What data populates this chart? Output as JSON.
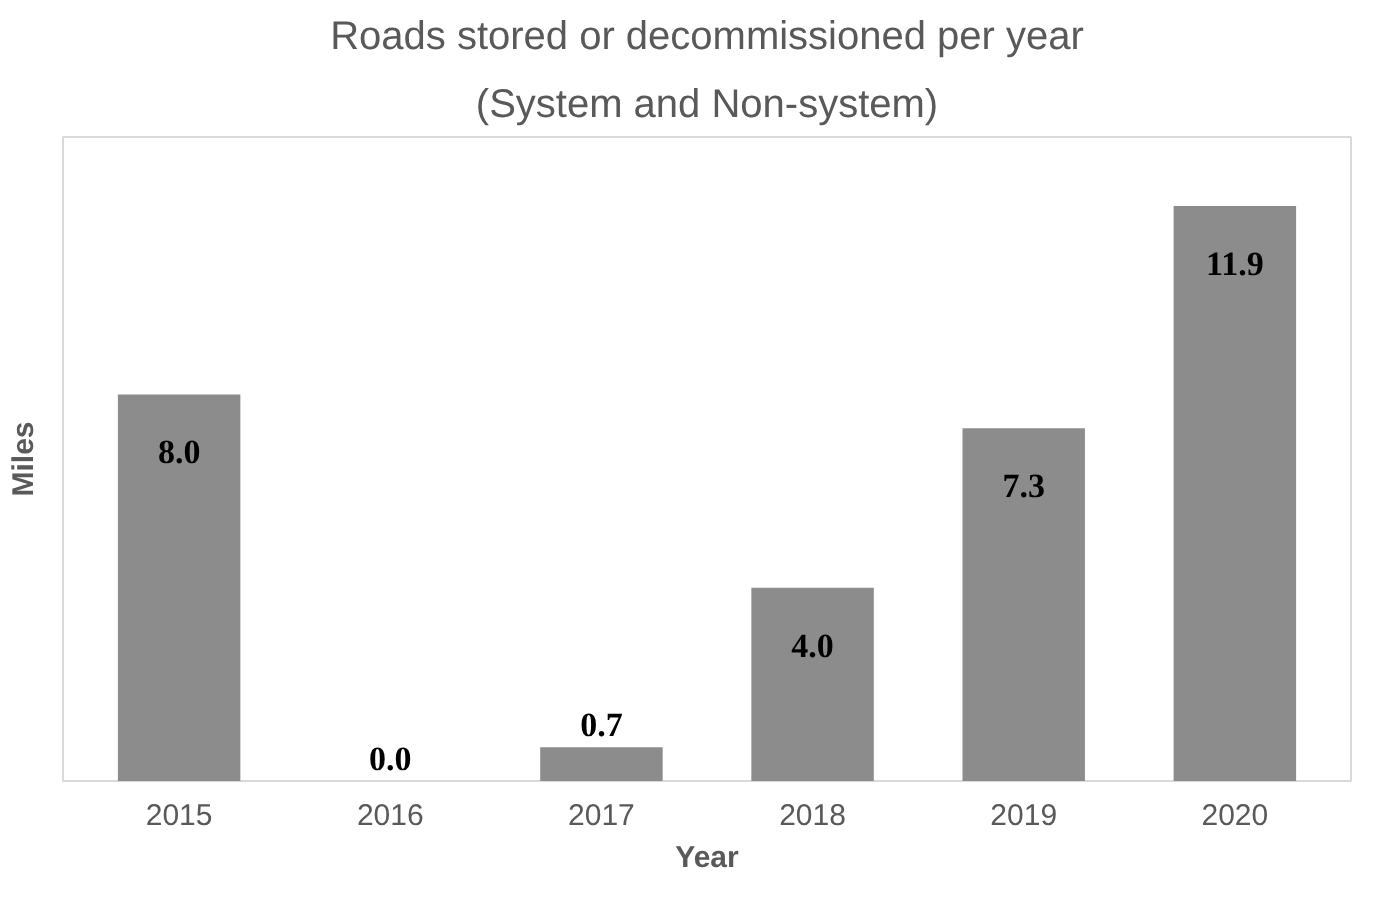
{
  "chart_data": {
    "type": "bar",
    "title": "Roads stored or decommissioned per year",
    "subtitle": "(System and Non-system)",
    "xlabel": "Year",
    "ylabel": "Miles",
    "categories": [
      "2015",
      "2016",
      "2017",
      "2018",
      "2019",
      "2020"
    ],
    "values": [
      8.0,
      0.0,
      0.7,
      4.0,
      7.3,
      11.9
    ],
    "value_labels": [
      "8.0",
      "0.0",
      "0.7",
      "4.0",
      "7.3",
      "11.9"
    ],
    "color": "#8c8c8c",
    "grid": false,
    "tick_labels": "x"
  }
}
